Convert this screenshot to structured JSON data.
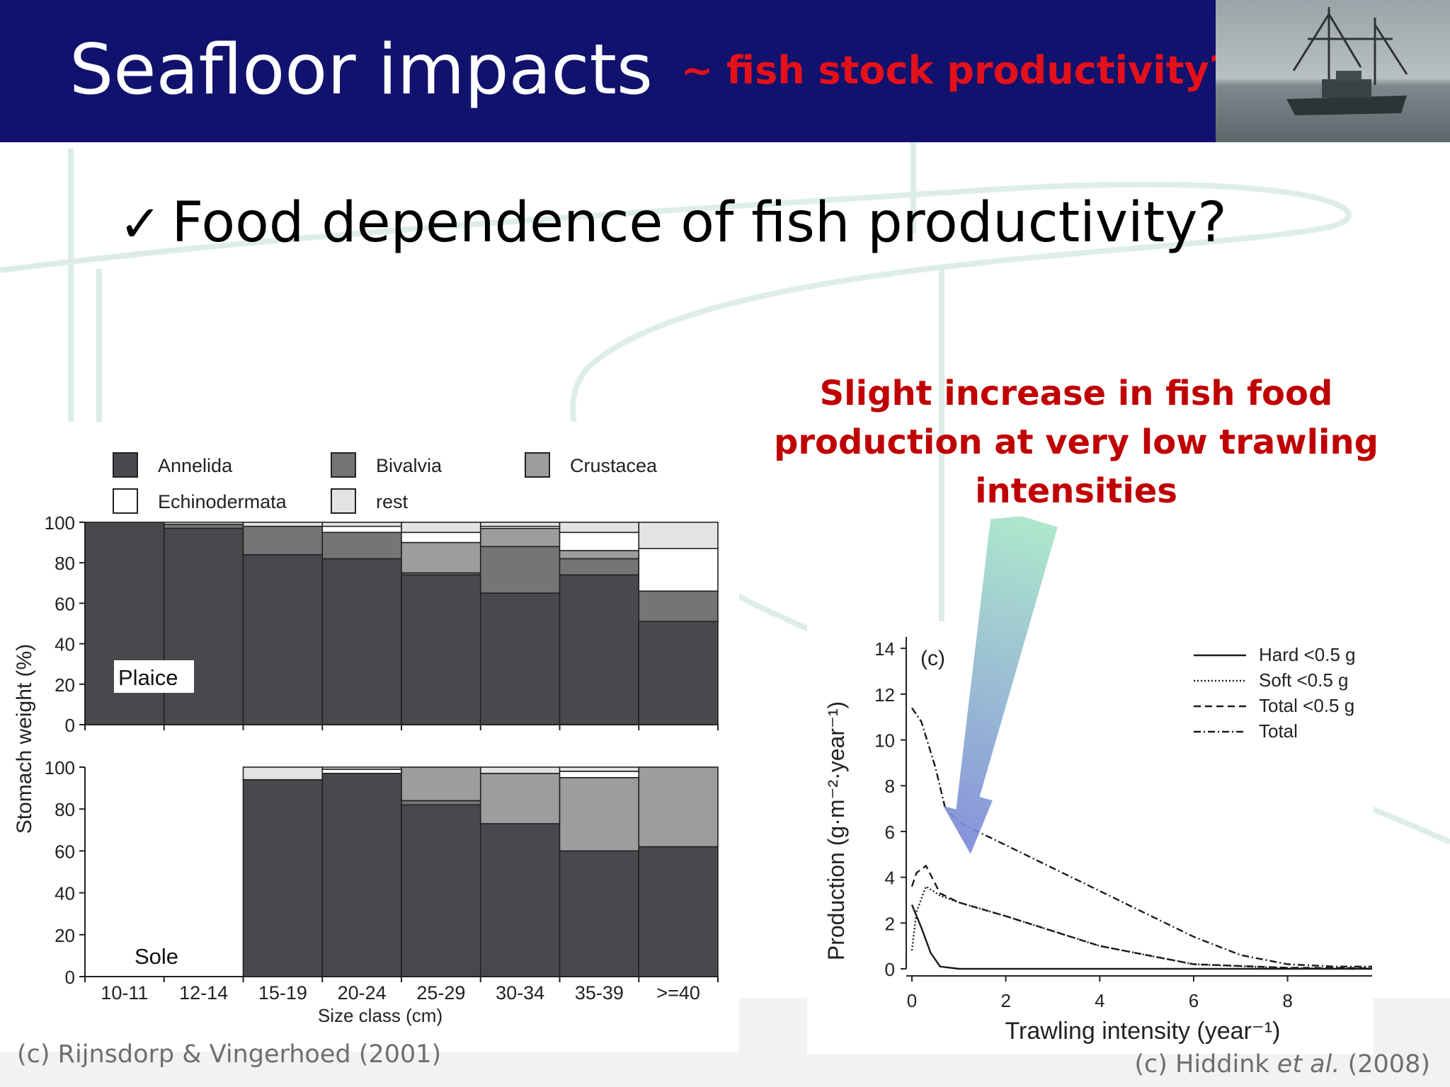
{
  "slide": {
    "title": "Seafloor impacts",
    "subtitle": "~ fish stock productivity?",
    "bullet": "Food dependence of fish productivity?",
    "annotation_lines": [
      "Slight increase in fish food",
      "production at very low trawling",
      "intensities"
    ],
    "credit_left": "(c) Rijnsdorp & Vingerhoed (2001)",
    "credit_right_prefix": "(c) Hiddink ",
    "credit_right_etal": "et al.",
    "credit_right_suffix": " (2008)",
    "colors": {
      "header": "#11116e",
      "subtitle": "#e4111a",
      "annotation": "#c00000",
      "arrow_top": "#a8e6c8",
      "arrow_bottom": "#7b86d8"
    }
  },
  "chart_data": [
    {
      "type": "stacked-bar",
      "panels": [
        "Plaice",
        "Sole"
      ],
      "ylabel": "Stomach weight (%)",
      "xlabel": "Size class (cm)",
      "categories": [
        "10-11",
        "12-14",
        "15-19",
        "20-24",
        "25-29",
        "30-34",
        "35-39",
        ">=40"
      ],
      "yticks": [
        0,
        20,
        40,
        60,
        80,
        100
      ],
      "ylim": [
        0,
        100
      ],
      "legend": [
        {
          "name": "Annelida",
          "color": "#4a484c"
        },
        {
          "name": "Bivalvia",
          "color": "#767477"
        },
        {
          "name": "Crustacea",
          "color": "#9e9c9f"
        },
        {
          "name": "Echinodermata",
          "color": "#ffffff"
        },
        {
          "name": "rest",
          "color": "#e3e3e5"
        }
      ],
      "plaice": {
        "Annelida": [
          100,
          97,
          84,
          82,
          74,
          65,
          74,
          51
        ],
        "Bivalvia": [
          0,
          2,
          14,
          13,
          1,
          23,
          8,
          15
        ],
        "Crustacea": [
          0,
          0,
          0,
          0,
          15,
          9,
          4,
          0
        ],
        "Echinodermata": [
          0,
          0,
          0,
          3,
          5,
          1,
          9,
          21
        ],
        "rest": [
          0,
          1,
          2,
          2,
          5,
          2,
          5,
          13
        ]
      },
      "sole": {
        "Annelida": [
          0,
          0,
          94,
          97,
          82,
          73,
          60,
          62
        ],
        "Bivalvia": [
          0,
          0,
          0,
          0,
          2,
          0,
          0,
          0
        ],
        "Crustacea": [
          0,
          0,
          0,
          0,
          16,
          24,
          35,
          38
        ],
        "Echinodermata": [
          0,
          0,
          0,
          2,
          0,
          0,
          3,
          0
        ],
        "rest": [
          0,
          0,
          6,
          1,
          0,
          3,
          2,
          0
        ]
      }
    },
    {
      "type": "line",
      "panel_label": "(c)",
      "xlabel": "Trawling intensity (year⁻¹)",
      "ylabel": "Production (g·m⁻²·year⁻¹)",
      "xlim": [
        0,
        9.8
      ],
      "ylim": [
        0,
        14.5
      ],
      "xticks": [
        0,
        2,
        4,
        6,
        8
      ],
      "yticks": [
        0,
        2,
        4,
        6,
        8,
        10,
        12,
        14
      ],
      "series": [
        {
          "name": "Hard <0.5 g",
          "style": "solid",
          "x": [
            0,
            0.2,
            0.4,
            0.6,
            1,
            9.8
          ],
          "y": [
            2.8,
            1.8,
            0.7,
            0.1,
            0,
            0
          ]
        },
        {
          "name": "Soft <0.5 g",
          "style": "dotted",
          "x": [
            0,
            0.1,
            0.3,
            0.6,
            1,
            2,
            4,
            6,
            8,
            9.8
          ],
          "y": [
            0.8,
            2.5,
            3.6,
            3.2,
            2.9,
            2.3,
            1.0,
            0.2,
            0.03,
            0.02
          ]
        },
        {
          "name": "Total <0.5 g",
          "style": "dashed",
          "x": [
            0,
            0.1,
            0.3,
            0.6,
            1,
            2,
            4,
            6,
            8,
            9.8
          ],
          "y": [
            3.6,
            4.2,
            4.5,
            3.3,
            2.9,
            2.3,
            1.0,
            0.2,
            0.05,
            0.03
          ]
        },
        {
          "name": "Total",
          "style": "dashdot",
          "x": [
            0,
            0.2,
            0.5,
            0.7,
            1,
            2,
            3,
            4,
            5,
            6,
            7,
            8,
            9,
            9.8
          ],
          "y": [
            11.4,
            10.8,
            8.8,
            7.1,
            6.4,
            5.4,
            4.4,
            3.4,
            2.4,
            1.4,
            0.6,
            0.2,
            0.1,
            0.1
          ]
        }
      ]
    }
  ]
}
